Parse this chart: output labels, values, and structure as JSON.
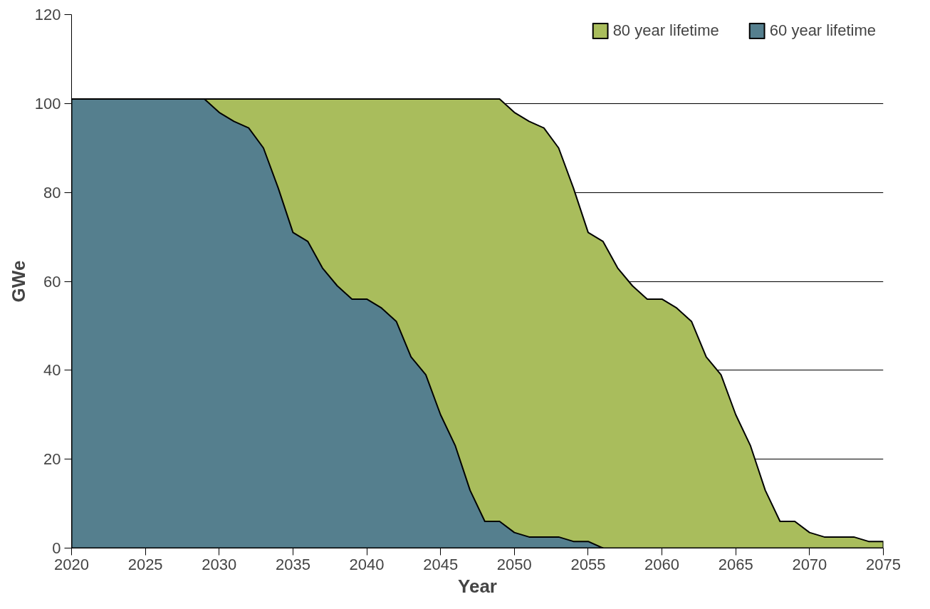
{
  "chart_data": {
    "type": "area",
    "xlabel": "Year",
    "ylabel": "GWe",
    "x": [
      2020,
      2021,
      2022,
      2023,
      2024,
      2025,
      2026,
      2027,
      2028,
      2029,
      2030,
      2031,
      2032,
      2033,
      2034,
      2035,
      2036,
      2037,
      2038,
      2039,
      2040,
      2041,
      2042,
      2043,
      2044,
      2045,
      2046,
      2047,
      2048,
      2049,
      2050,
      2051,
      2052,
      2053,
      2054,
      2055,
      2056,
      2057,
      2058,
      2059,
      2060,
      2061,
      2062,
      2063,
      2064,
      2065,
      2066,
      2067,
      2068,
      2069,
      2070,
      2071,
      2072,
      2073,
      2074,
      2075
    ],
    "series": [
      {
        "name": "80 year lifetime",
        "color": "#a9bd5c",
        "values": [
          101,
          101,
          101,
          101,
          101,
          101,
          101,
          101,
          101,
          101,
          101,
          101,
          101,
          101,
          101,
          101,
          101,
          101,
          101,
          101,
          101,
          101,
          101,
          101,
          101,
          101,
          101,
          101,
          101,
          101,
          98,
          96,
          94.5,
          90,
          81,
          71,
          69,
          63,
          59,
          56,
          56,
          54,
          51,
          43,
          39,
          30,
          23,
          13,
          6,
          6,
          3.5,
          2.5,
          2.5,
          2.5,
          1.5,
          1.5
        ]
      },
      {
        "name": "60 year lifetime",
        "color": "#557f8e",
        "values": [
          101,
          101,
          101,
          101,
          101,
          101,
          101,
          101,
          101,
          101,
          98,
          96,
          94.5,
          90,
          81,
          71,
          69,
          63,
          59,
          56,
          56,
          54,
          51,
          43,
          39,
          30,
          23,
          13,
          6,
          6,
          3.5,
          2.5,
          2.5,
          2.5,
          1.5,
          1.5,
          0,
          null,
          null,
          null,
          null,
          null,
          null,
          null,
          null,
          null,
          null,
          null,
          null,
          null,
          null,
          null,
          null,
          null,
          null,
          null
        ]
      }
    ],
    "xlim": [
      2020,
      2075
    ],
    "xticks": [
      2020,
      2025,
      2030,
      2035,
      2040,
      2045,
      2050,
      2055,
      2060,
      2065,
      2070,
      2075
    ],
    "ylim": [
      0,
      120
    ],
    "yticks": [
      0,
      20,
      40,
      60,
      80,
      100,
      120
    ],
    "grid": "y",
    "legend": "top right"
  }
}
